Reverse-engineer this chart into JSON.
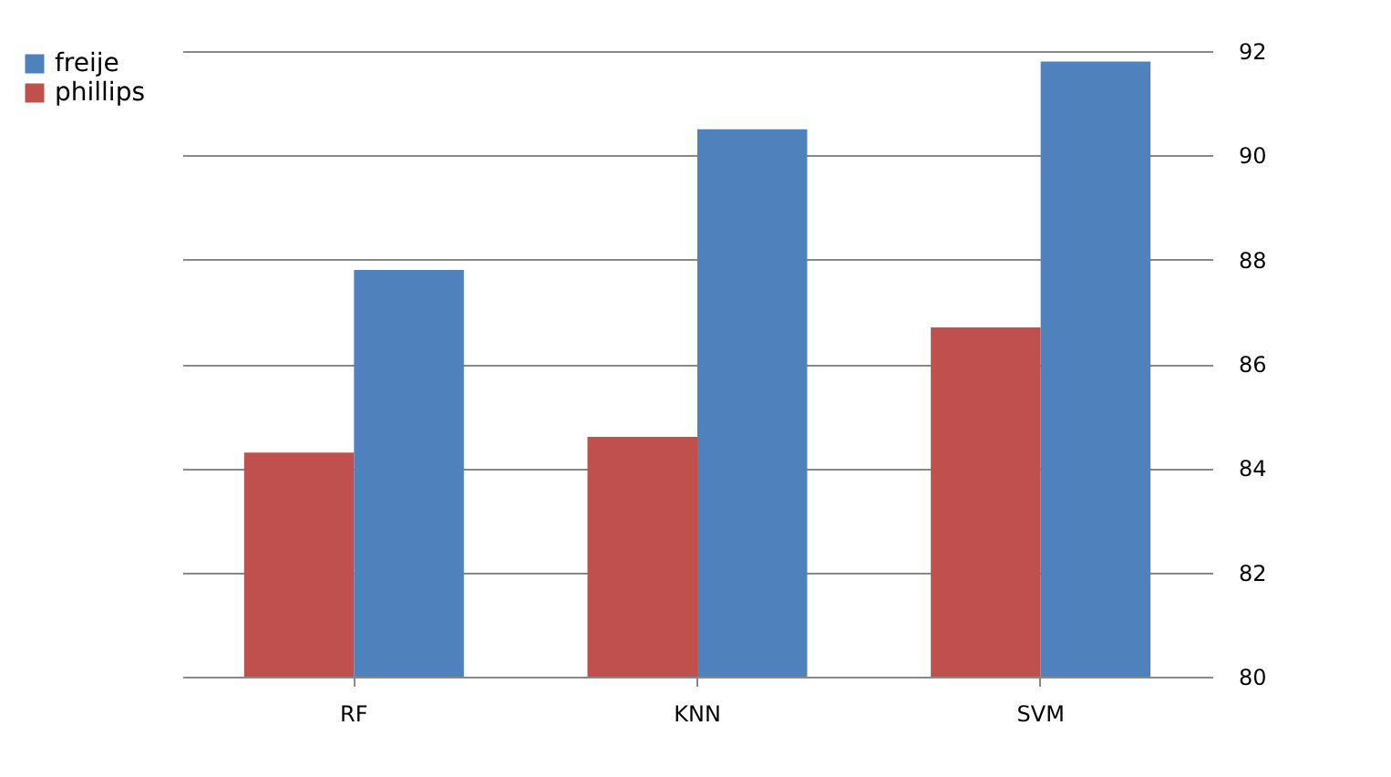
{
  "chart_data": {
    "type": "bar",
    "categories": [
      "RF",
      "KNN",
      "SVM"
    ],
    "series": [
      {
        "name": "phillips",
        "color": "#c0504d",
        "values": [
          84.3,
          84.6,
          86.7
        ]
      },
      {
        "name": "freije",
        "color": "#4f81bd",
        "values": [
          87.8,
          90.5,
          91.8
        ]
      }
    ],
    "ylim": [
      80,
      92
    ],
    "yticks": [
      80,
      82,
      84,
      86,
      88,
      90,
      92
    ],
    "grid": "y",
    "legend": "left"
  }
}
